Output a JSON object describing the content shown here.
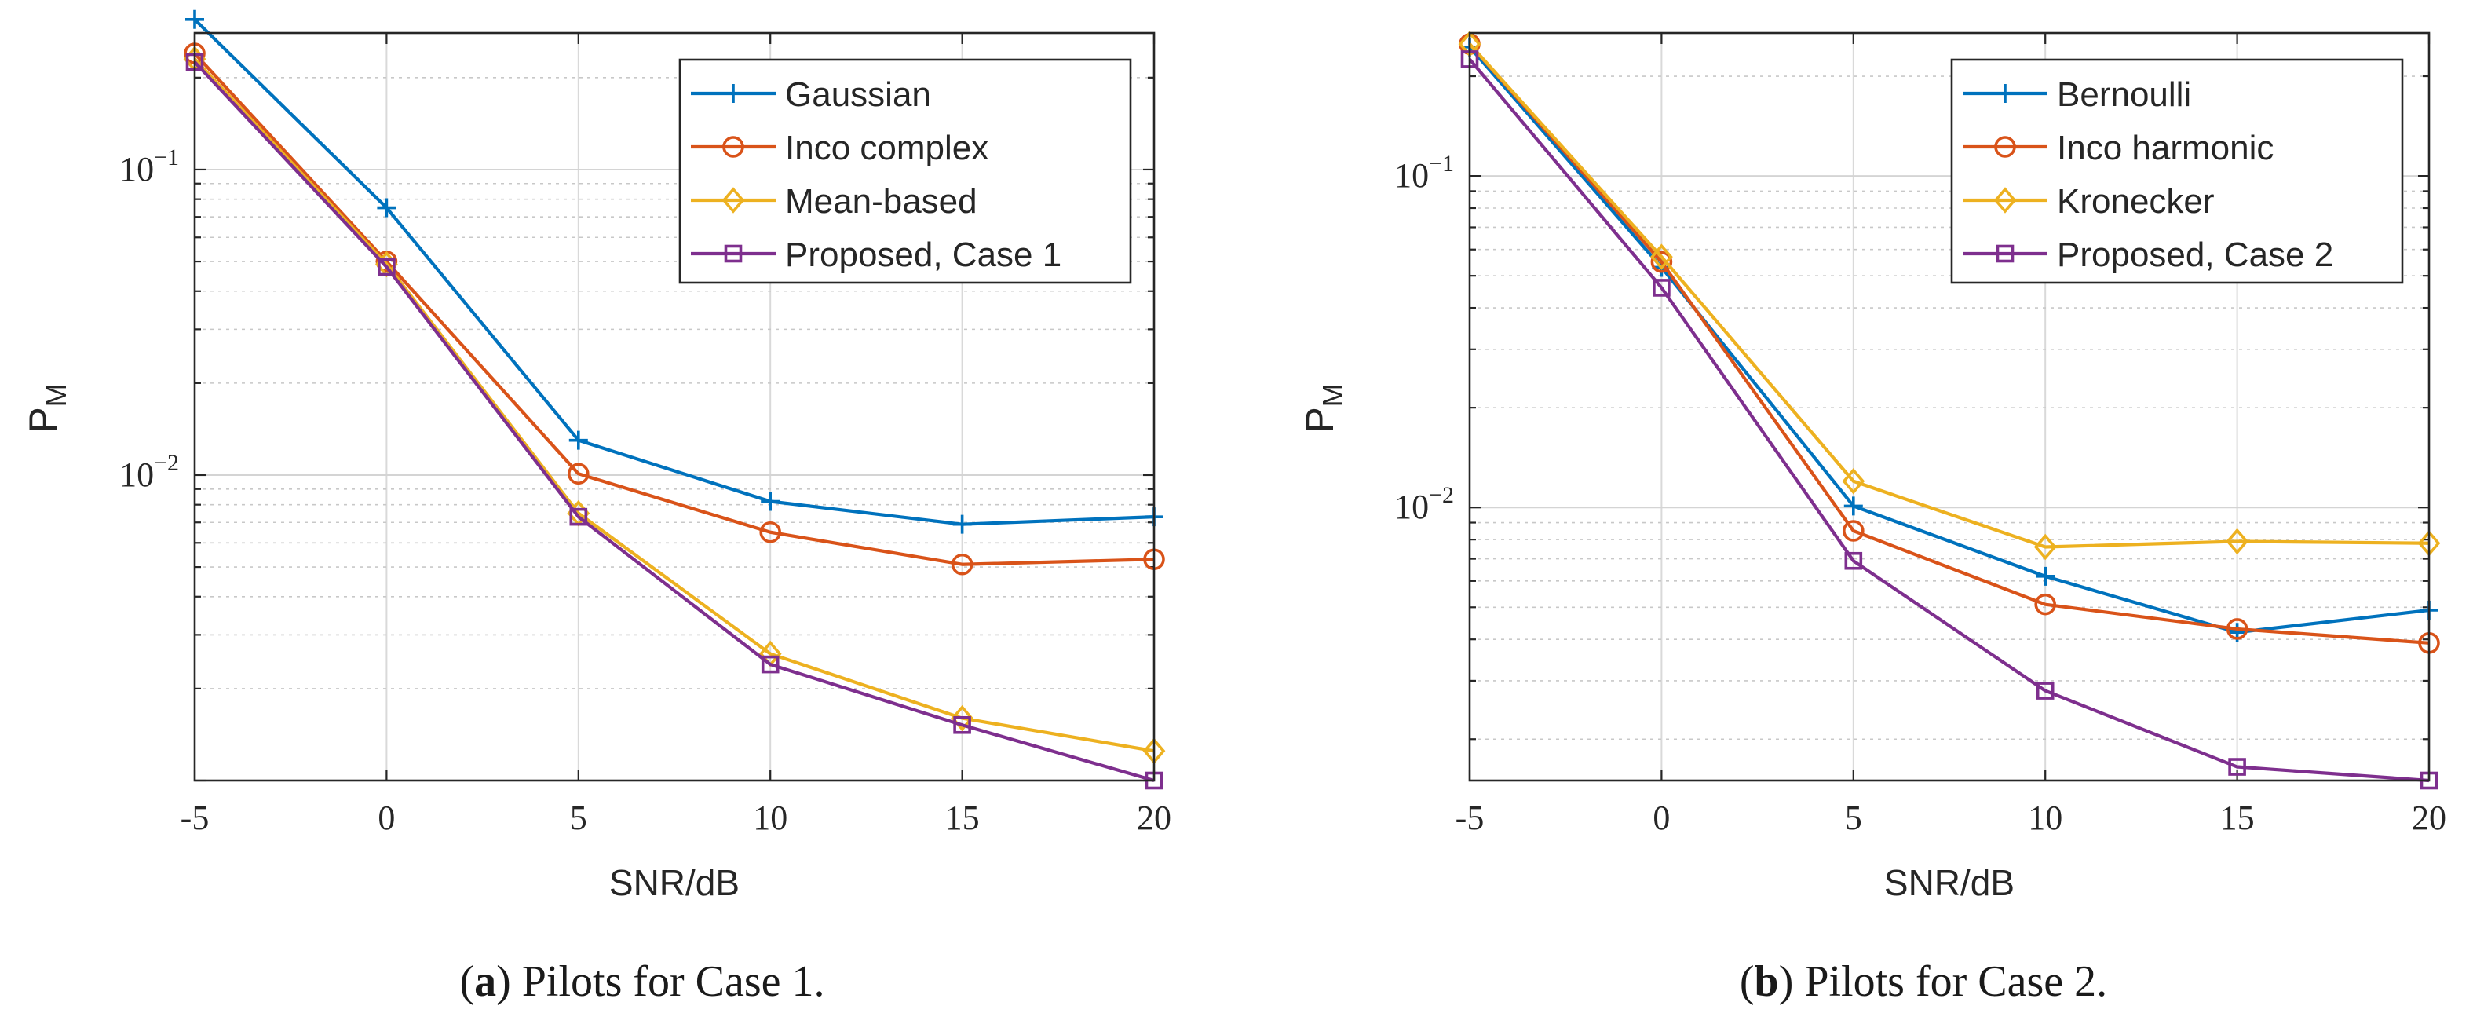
{
  "chart_data": [
    {
      "type": "line",
      "caption_label": "a",
      "caption_text": " Pilots for Case 1.",
      "title": "",
      "xlabel": "SNR/dB",
      "ylabel": "P",
      "ylabel_sub": "M",
      "yscale": "log",
      "xlim": [
        -5,
        20
      ],
      "ylim": [
        0.001,
        0.28
      ],
      "xticks": [
        "-5",
        "0",
        "5",
        "10",
        "15",
        "20"
      ],
      "ytick_labels": [
        {
          "base": "10",
          "exp": "−1",
          "value": 0.1
        },
        {
          "base": "10",
          "exp": "−2",
          "value": 0.01
        }
      ],
      "grid": true,
      "legend_position": "top-right",
      "x": [
        -5,
        0,
        5,
        10,
        15,
        20
      ],
      "series": [
        {
          "name": "Gaussian",
          "color": "#0072BD",
          "marker": "plus",
          "values": [
            0.31,
            0.075,
            0.013,
            0.0082,
            0.0069,
            0.0073
          ]
        },
        {
          "name": "Inco complex",
          "color": "#D95319",
          "marker": "circle",
          "values": [
            0.24,
            0.05,
            0.0101,
            0.0065,
            0.0051,
            0.0053
          ]
        },
        {
          "name": "Mean-based",
          "color": "#EDB120",
          "marker": "diamond",
          "values": [
            0.23,
            0.049,
            0.0075,
            0.0026,
            0.0016,
            0.00125
          ]
        },
        {
          "name": "Proposed, Case 1",
          "color": "#7E2F8E",
          "marker": "square",
          "values": [
            0.225,
            0.048,
            0.0073,
            0.0024,
            0.00152,
            0.001
          ]
        }
      ]
    },
    {
      "type": "line",
      "caption_label": "b",
      "caption_text": " Pilots for Case 2.",
      "title": "",
      "xlabel": "SNR/dB",
      "ylabel": "P",
      "ylabel_sub": "M",
      "yscale": "log",
      "xlim": [
        -5,
        20
      ],
      "ylim": [
        0.0015,
        0.27
      ],
      "xticks": [
        "-5",
        "0",
        "5",
        "10",
        "15",
        "20"
      ],
      "ytick_labels": [
        {
          "base": "10",
          "exp": "−1",
          "value": 0.1
        },
        {
          "base": "10",
          "exp": "−2",
          "value": 0.01
        }
      ],
      "grid": true,
      "legend_position": "top-right",
      "x": [
        -5,
        0,
        5,
        10,
        15,
        20
      ],
      "series": [
        {
          "name": "Bernoulli",
          "color": "#0072BD",
          "marker": "plus",
          "values": [
            0.245,
            0.053,
            0.0101,
            0.0062,
            0.0042,
            0.0049
          ]
        },
        {
          "name": "Inco harmonic",
          "color": "#D95319",
          "marker": "circle",
          "values": [
            0.25,
            0.055,
            0.0085,
            0.0051,
            0.0043,
            0.0039
          ]
        },
        {
          "name": "Kronecker",
          "color": "#EDB120",
          "marker": "diamond",
          "values": [
            0.25,
            0.057,
            0.012,
            0.0076,
            0.0079,
            0.0078
          ]
        },
        {
          "name": "Proposed, Case 2",
          "color": "#7E2F8E",
          "marker": "square",
          "values": [
            0.225,
            0.046,
            0.0069,
            0.0028,
            0.00165,
            0.0015
          ]
        }
      ]
    }
  ]
}
